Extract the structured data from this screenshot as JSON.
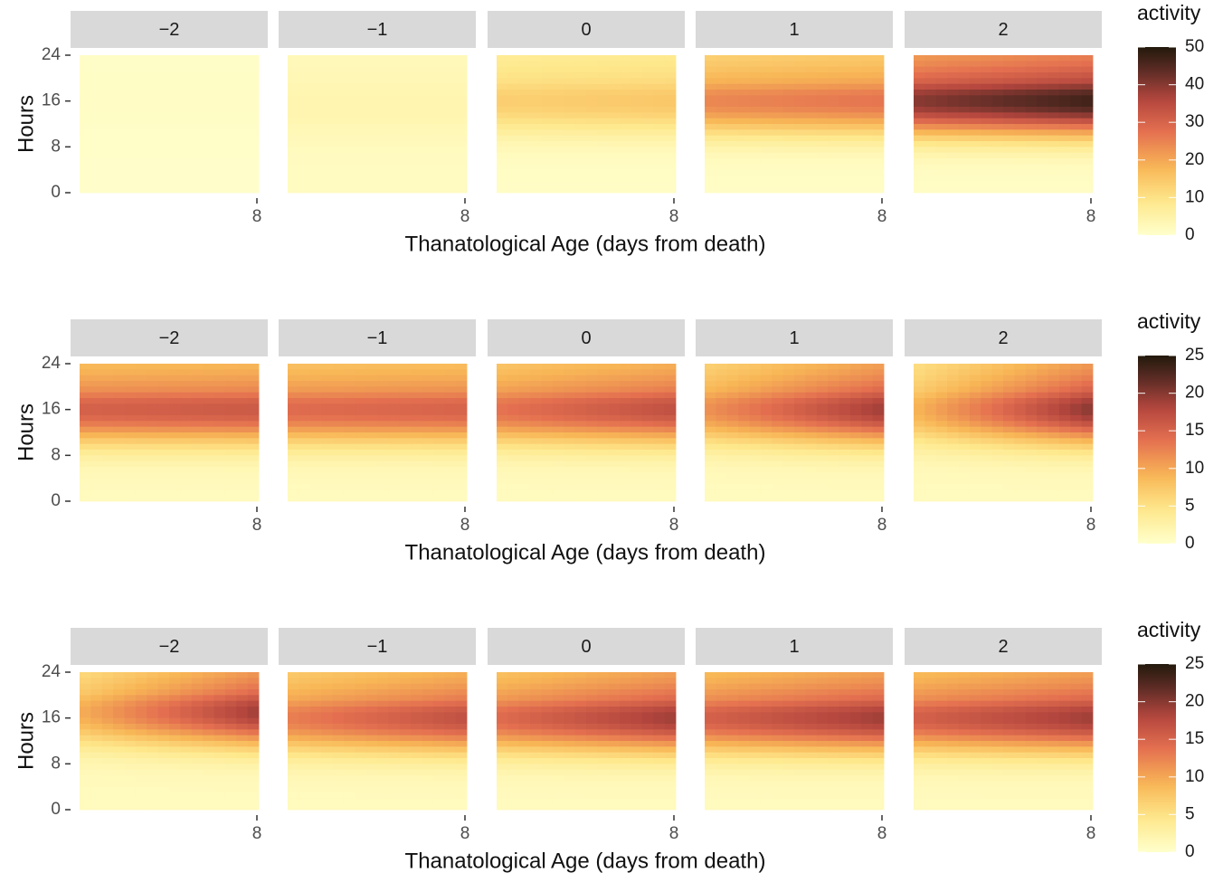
{
  "chart_data": [
    {
      "type": "heatmap",
      "xlabel": "Thanatological Age (days from death)",
      "ylabel": "Hours",
      "facet_labels": [
        "−2",
        "−1",
        "0",
        "1",
        "2"
      ],
      "x_ticks": [
        "8"
      ],
      "y_ticks": [
        "0",
        "8",
        "16",
        "24"
      ],
      "legend": {
        "title": "activity",
        "ticks": [
          "0",
          "10",
          "20",
          "30",
          "40",
          "50"
        ],
        "range": [
          0,
          50
        ],
        "placement": "right"
      },
      "panels": [
        {
          "facet": "−2",
          "peak_activity": 1,
          "peak_hour": 16,
          "trend_with_age": 0.0,
          "baseline": 0.3
        },
        {
          "facet": "−1",
          "peak_activity": 4,
          "peak_hour": 15,
          "trend_with_age": 0.0,
          "baseline": 1.5
        },
        {
          "facet": "0",
          "peak_activity": 15,
          "peak_hour": 16,
          "trend_with_age": 0.1,
          "baseline": 1
        },
        {
          "facet": "1",
          "peak_activity": 27,
          "peak_hour": 16,
          "trend_with_age": 0.1,
          "baseline": 1
        },
        {
          "facet": "2",
          "peak_activity": 47,
          "peak_hour": 16,
          "trend_with_age": 0.15,
          "baseline": 1
        }
      ]
    },
    {
      "type": "heatmap",
      "xlabel": "Thanatological Age (days from death)",
      "ylabel": "Hours",
      "facet_labels": [
        "−2",
        "−1",
        "0",
        "1",
        "2"
      ],
      "x_ticks": [
        "8"
      ],
      "y_ticks": [
        "0",
        "8",
        "16",
        "24"
      ],
      "legend": {
        "title": "activity",
        "ticks": [
          "0",
          "5",
          "10",
          "15",
          "20",
          "25"
        ],
        "range": [
          0,
          25
        ],
        "placement": "right"
      },
      "panels": [
        {
          "facet": "−2",
          "peak_activity": 16,
          "peak_hour": 16,
          "trend_with_age": 0.05,
          "baseline": 1
        },
        {
          "facet": "−1",
          "peak_activity": 15,
          "peak_hour": 16,
          "trend_with_age": 0.05,
          "baseline": 1
        },
        {
          "facet": "0",
          "peak_activity": 17,
          "peak_hour": 16,
          "trend_with_age": 0.2,
          "baseline": 1
        },
        {
          "facet": "1",
          "peak_activity": 19,
          "peak_hour": 16,
          "trend_with_age": 0.4,
          "baseline": 1
        },
        {
          "facet": "2",
          "peak_activity": 20,
          "peak_hour": 16,
          "trend_with_age": 0.55,
          "baseline": 1
        }
      ]
    },
    {
      "type": "heatmap",
      "xlabel": "Thanatological Age (days from death)",
      "ylabel": "Hours",
      "facet_labels": [
        "−2",
        "−1",
        "0",
        "1",
        "2"
      ],
      "x_ticks": [
        "8"
      ],
      "y_ticks": [
        "0",
        "8",
        "16",
        "24"
      ],
      "legend": {
        "title": "activity",
        "ticks": [
          "0",
          "5",
          "10",
          "15",
          "20",
          "25"
        ],
        "range": [
          0,
          25
        ],
        "placement": "right"
      },
      "panels": [
        {
          "facet": "−2",
          "peak_activity": 19,
          "peak_hour": 17,
          "trend_with_age": 0.5,
          "baseline": 1
        },
        {
          "facet": "−1",
          "peak_activity": 17,
          "peak_hour": 16,
          "trend_with_age": 0.25,
          "baseline": 1
        },
        {
          "facet": "0",
          "peak_activity": 19,
          "peak_hour": 16,
          "trend_with_age": 0.25,
          "baseline": 1
        },
        {
          "facet": "1",
          "peak_activity": 19,
          "peak_hour": 16,
          "trend_with_age": 0.2,
          "baseline": 1
        },
        {
          "facet": "2",
          "peak_activity": 19,
          "peak_hour": 16,
          "trend_with_age": 0.2,
          "baseline": 1
        }
      ]
    }
  ]
}
